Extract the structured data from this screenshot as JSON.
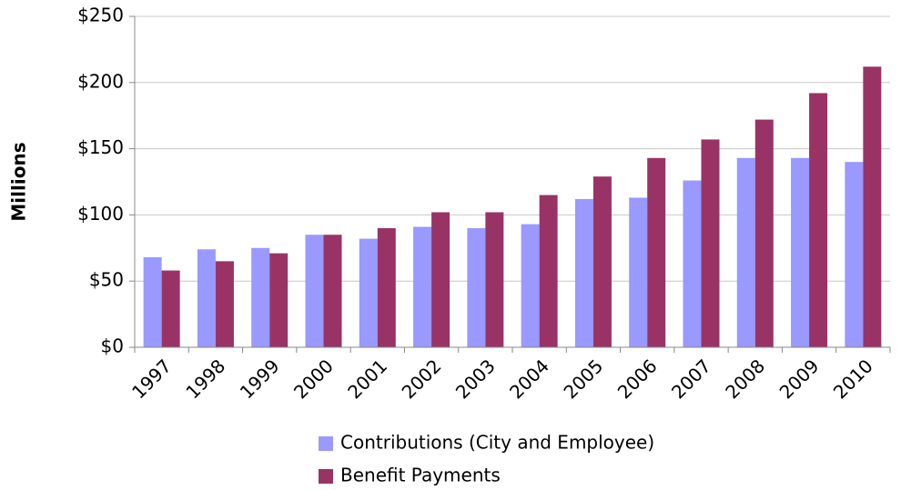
{
  "chart_data": {
    "type": "bar",
    "y_label": "Millions",
    "categories": [
      "1997",
      "1998",
      "1999",
      "2000",
      "2001",
      "2002",
      "2003",
      "2004",
      "2005",
      "2006",
      "2007",
      "2008",
      "2009",
      "2010"
    ],
    "series": [
      {
        "name": "Contributions (City and Employee)",
        "color": "#9999ff",
        "values": [
          68,
          74,
          75,
          85,
          82,
          91,
          90,
          93,
          112,
          113,
          126,
          143,
          143,
          140
        ]
      },
      {
        "name": "Benefit Payments",
        "color": "#993366",
        "values": [
          58,
          65,
          71,
          85,
          90,
          102,
          102,
          115,
          129,
          143,
          157,
          172,
          192,
          212
        ]
      }
    ],
    "ylim": [
      0,
      250
    ],
    "yticks": [
      {
        "value": 0,
        "label": "$0"
      },
      {
        "value": 50,
        "label": "$50"
      },
      {
        "value": 100,
        "label": "$100"
      },
      {
        "value": 150,
        "label": "$150"
      },
      {
        "value": 200,
        "label": "$200"
      },
      {
        "value": 250,
        "label": "$250"
      }
    ],
    "grid": true,
    "legend": "bottom"
  }
}
